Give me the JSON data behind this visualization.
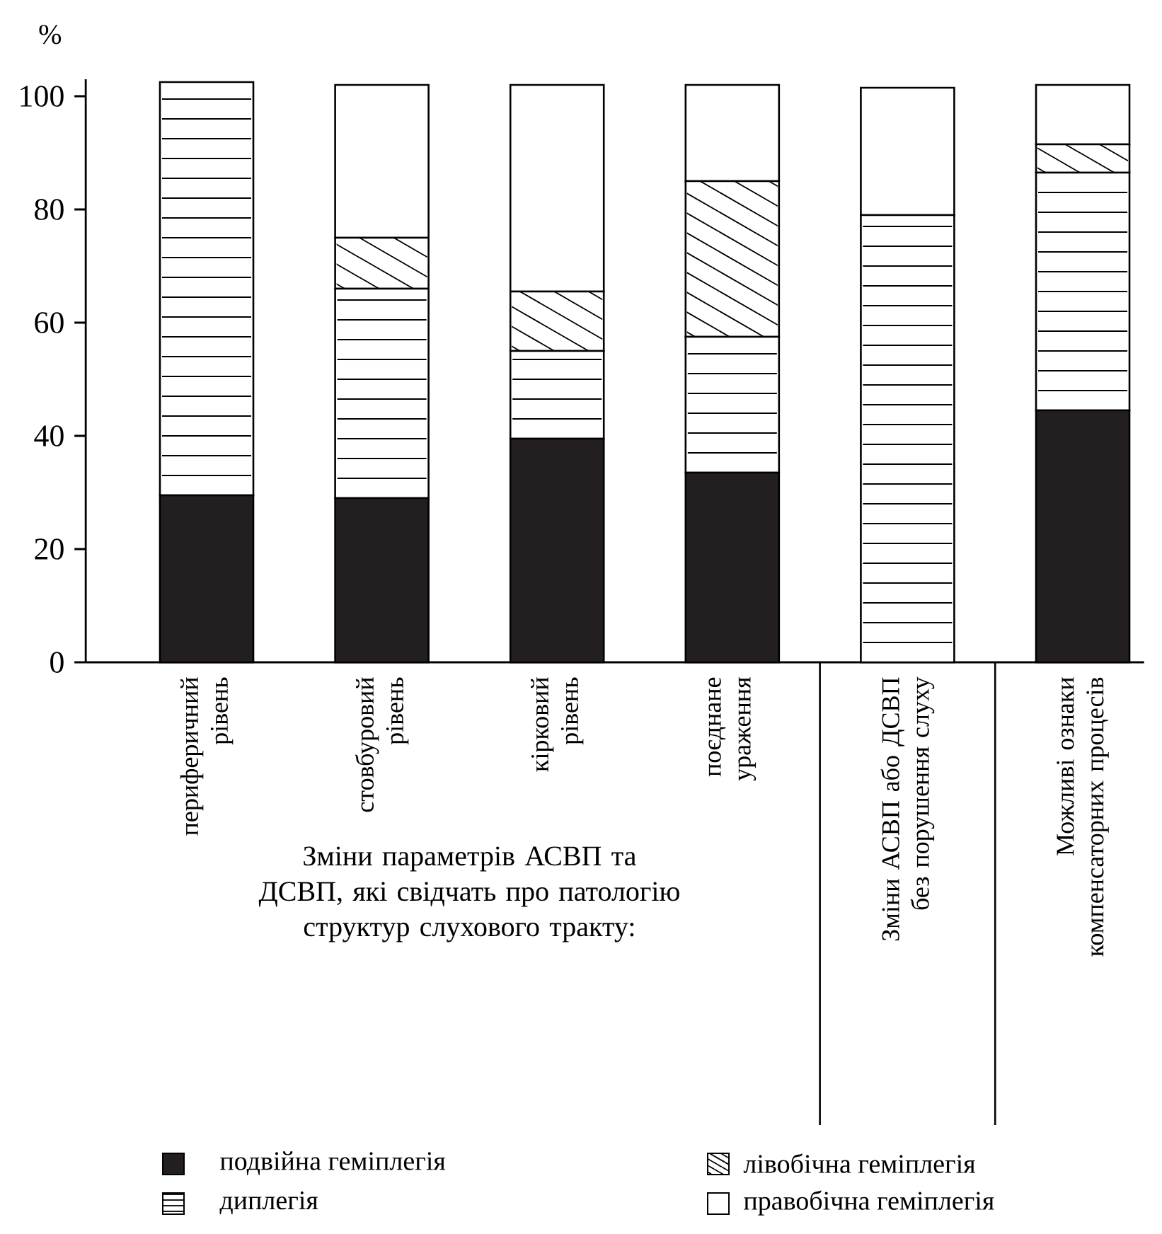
{
  "chart_data": {
    "type": "bar",
    "stacked": true,
    "ylabel": "%",
    "categories": [
      "периферичний рівень",
      "стовбуровий рівень",
      "кірковий рівень",
      "поєднане ураження",
      "Зміни АСВП або ДСВП без порушення слуху",
      "Можливі ознаки компенсаторних процесів"
    ],
    "series": [
      {
        "name": "подвійна геміплегія",
        "color": "#231f20",
        "values": [
          29.5,
          29,
          39.5,
          33.5,
          0,
          44.5
        ]
      },
      {
        "name": "диплегія",
        "color": "#ffffff",
        "values": [
          73,
          37,
          15.5,
          24,
          79,
          42
        ]
      },
      {
        "name": "лівобічна геміплегія",
        "color": "#ffffff",
        "values": [
          0,
          9,
          10.5,
          27.5,
          0,
          5
        ]
      },
      {
        "name": "правобічна геміплегія",
        "color": "#ffffff",
        "values": [
          0,
          27,
          36.5,
          17,
          22.5,
          10.5
        ]
      }
    ],
    "ylim": [
      0,
      103
    ],
    "yticks": [
      0,
      20,
      40,
      60,
      80,
      100
    ],
    "grid": false,
    "legend": "bottom",
    "annotations": [
      "Зміни параметрів АСВП та ДСВП, які свідчать про патологію структур слухового тракту:"
    ]
  }
}
